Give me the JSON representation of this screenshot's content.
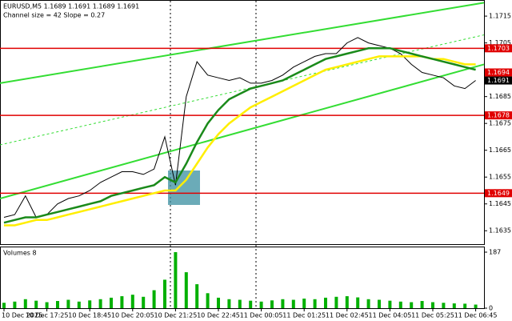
{
  "chart_data": [
    {
      "type": "line",
      "title": "EURUSD,M5  1.1689 1.1691 1.1689 1.1691",
      "subtitle": "Channel size = 42 Slope = 0.27",
      "categories": [
        "10 Dec 2025",
        null,
        null,
        null,
        "10 Dec 17:25",
        null,
        null,
        null,
        "10 Dec 18:45",
        null,
        null,
        null,
        "10 Dec 20:05",
        null,
        null,
        null,
        "10 Dec 21:25",
        null,
        null,
        null,
        "10 Dec 22:45",
        null,
        null,
        null,
        "11 Dec 00:05",
        null,
        null,
        null,
        "11 Dec 01:25",
        null,
        null,
        null,
        "11 Dec 02:45",
        null,
        null,
        null,
        "11 Dec 04:05",
        null,
        null,
        null,
        "11 Dec 05:25",
        null,
        null,
        null,
        "11 Dec 06:45"
      ],
      "series": [
        {
          "color": "#000000",
          "values": [
            1.164,
            1.1641,
            1.1648,
            1.164,
            1.1641,
            1.1645,
            1.1647,
            1.1648,
            1.165,
            1.1653,
            1.1655,
            1.1657,
            1.1657,
            1.1656,
            1.1658,
            1.167,
            1.1652,
            1.1685,
            1.1698,
            1.1693,
            1.1692,
            1.1691,
            1.1692,
            1.169,
            1.169,
            1.1691,
            1.1693,
            1.1696,
            1.1698,
            1.17,
            1.1701,
            1.1701,
            1.1705,
            1.1707,
            1.1705,
            1.1704,
            1.1703,
            1.1701,
            1.1697,
            1.1694,
            1.1693,
            1.1692,
            1.1689,
            1.1688,
            1.1691
          ]
        },
        {
          "color": "#ffee00",
          "values": [
            1.1637,
            1.1637,
            1.1638,
            1.1639,
            1.1639,
            1.164,
            1.1641,
            1.1642,
            1.1643,
            1.1644,
            1.1645,
            1.1646,
            1.1647,
            1.1648,
            1.1649,
            1.165,
            1.165,
            1.1654,
            1.166,
            1.1666,
            1.1671,
            1.1675,
            1.1678,
            1.1681,
            1.1683,
            1.1685,
            1.1687,
            1.1689,
            1.1691,
            1.1693,
            1.1695,
            1.1696,
            1.1697,
            1.1698,
            1.1699,
            1.17,
            1.17,
            1.17,
            1.17,
            1.17,
            1.1699,
            1.1699,
            1.1698,
            1.1697,
            1.1697
          ]
        },
        {
          "color": "#1a8a1a",
          "values": [
            1.1638,
            1.1639,
            1.164,
            1.164,
            1.1641,
            1.1642,
            1.1643,
            1.1644,
            1.1645,
            1.1646,
            1.1648,
            1.1649,
            1.165,
            1.1651,
            1.1652,
            1.1655,
            1.1653,
            1.166,
            1.1668,
            1.1675,
            1.168,
            1.1684,
            1.1686,
            1.1688,
            1.1689,
            1.169,
            1.1691,
            1.1693,
            1.1695,
            1.1697,
            1.1699,
            1.17,
            1.1701,
            1.1702,
            1.1703,
            1.1703,
            1.1703,
            1.1702,
            1.1701,
            1.17,
            1.1699,
            1.1698,
            1.1697,
            1.1696,
            1.1695
          ]
        }
      ],
      "trendlines": [
        {
          "color": "#33dd33",
          "values": [
            1.169,
            1.172
          ]
        },
        {
          "color": "#33dd33",
          "values": [
            1.1647,
            1.1697
          ]
        },
        {
          "color": "#33dd33",
          "dashed": true,
          "values": [
            1.1667,
            1.1708
          ]
        }
      ],
      "levels": [
        {
          "color": "#e00000",
          "value": 1.1703
        },
        {
          "color": "#e00000",
          "value": 1.1678
        },
        {
          "color": "#e00000",
          "value": 1.1649
        }
      ],
      "price_labels": [
        {
          "color": "#e00000",
          "value": 1.1694
        },
        {
          "color": "#000000",
          "value": 1.1691
        }
      ],
      "ylim": [
        1.163,
        1.1721
      ],
      "yticks": [
        1.1635,
        1.1645,
        1.1655,
        1.1665,
        1.1675,
        1.1685,
        1.1705,
        1.1715
      ]
    },
    {
      "type": "bar",
      "title": "Volumes 8",
      "color": "#00b000",
      "values": [
        18,
        22,
        30,
        25,
        20,
        24,
        28,
        22,
        26,
        30,
        35,
        40,
        45,
        38,
        60,
        95,
        187,
        120,
        80,
        50,
        35,
        30,
        28,
        25,
        22,
        26,
        30,
        28,
        32,
        30,
        35,
        38,
        40,
        36,
        30,
        28,
        25,
        22,
        20,
        24,
        20,
        18,
        16,
        15,
        12
      ],
      "ylim": [
        0,
        187
      ],
      "yticks": [
        0,
        187
      ]
    }
  ]
}
